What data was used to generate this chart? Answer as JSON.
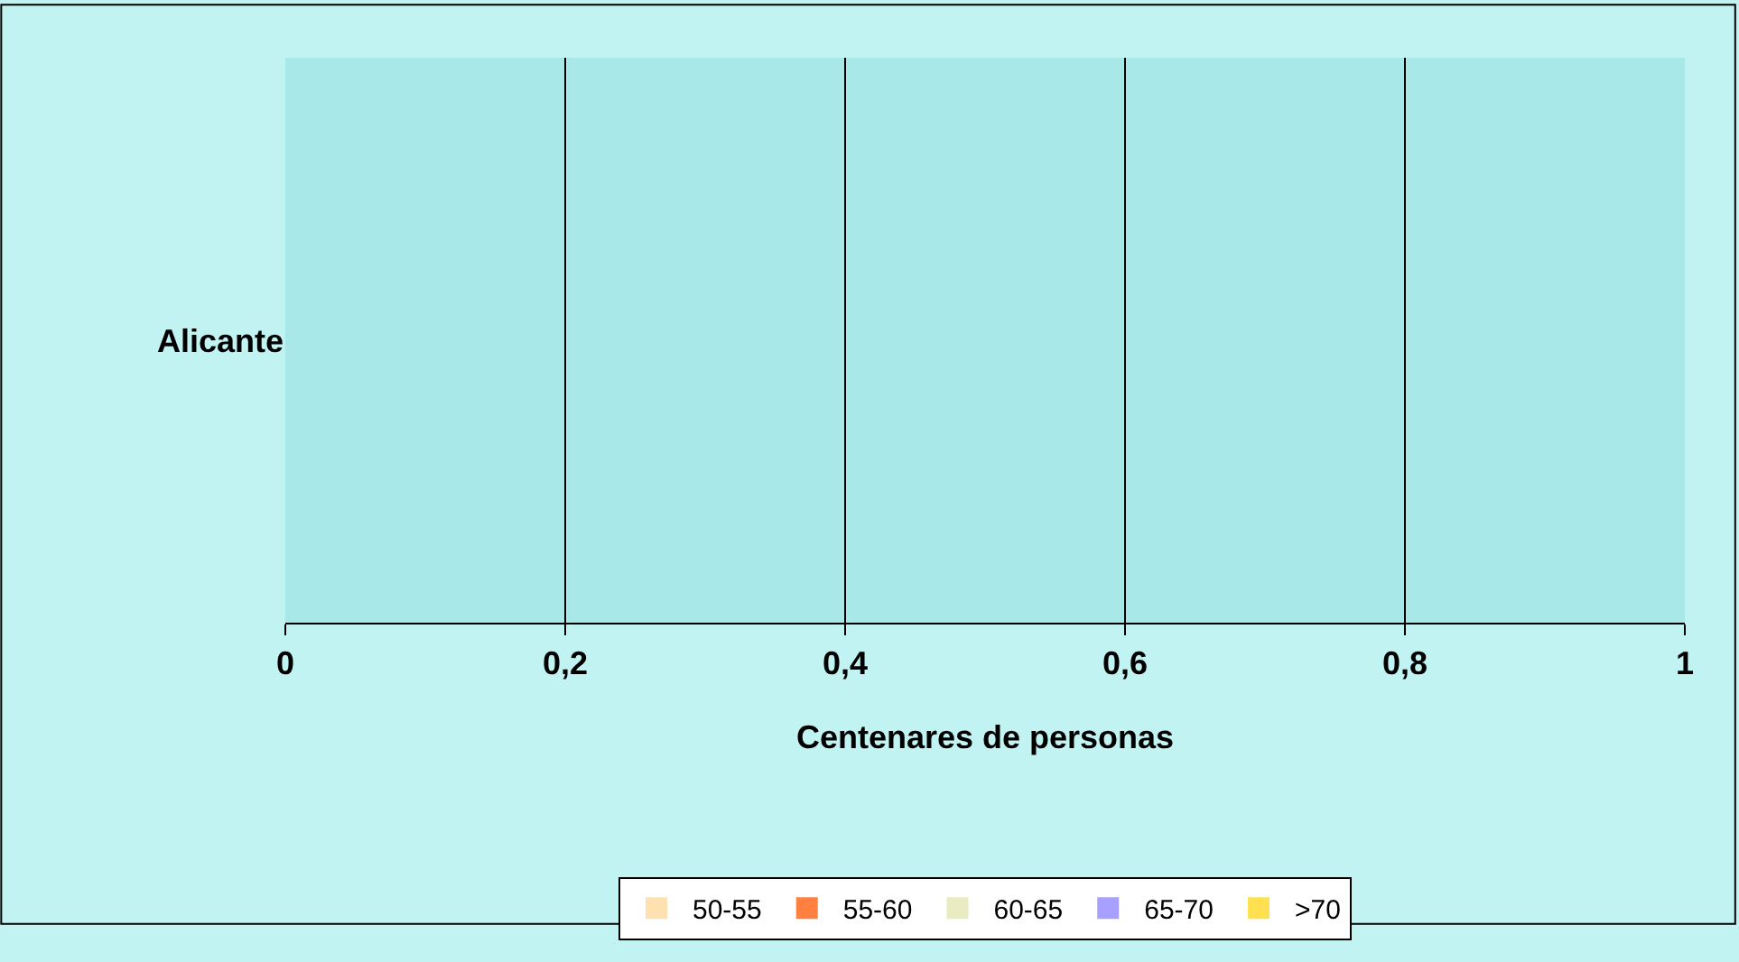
{
  "chart_data": {
    "type": "bar",
    "orientation": "horizontal",
    "categories": [
      "Alicante"
    ],
    "series": [
      {
        "name": "50-55",
        "color": "#ffe0b0",
        "values": [
          0
        ]
      },
      {
        "name": "55-60",
        "color": "#ff8040",
        "values": [
          0
        ]
      },
      {
        "name": "60-65",
        "color": "#e8ecc0",
        "values": [
          0
        ]
      },
      {
        "name": "65-70",
        "color": "#a8a0ff",
        "values": [
          0
        ]
      },
      {
        "name": ">70",
        "color": "#ffe050",
        "values": [
          0
        ]
      }
    ],
    "xlabel": "Centenares de personas",
    "xlim": [
      0,
      1
    ],
    "xticks": [
      0,
      {
        "value": 0.2,
        "label": "0,2"
      },
      {
        "value": 0.4,
        "label": "0,4"
      },
      {
        "value": 0.6,
        "label": "0,6"
      },
      {
        "value": 0.8,
        "label": "0,8"
      },
      1
    ],
    "grid": "x",
    "legend": "bottom"
  }
}
